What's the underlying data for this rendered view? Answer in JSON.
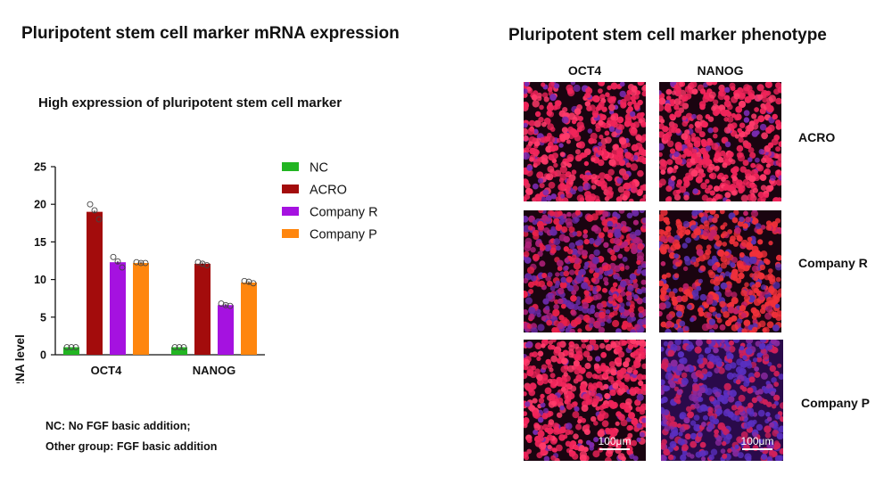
{
  "left_title": "Pluripotent stem cell marker mRNA expression",
  "right_title": "Pluripotent stem cell marker phenotype",
  "footnote_1": "NC: No FGF basic addition;",
  "footnote_2": "Other group: FGF basic addition",
  "chart_data": {
    "type": "bar",
    "title": "High expression of pluripotent stem cell marker",
    "xlabel": "",
    "ylabel": "relative mRNA level",
    "categories": [
      "OCT4",
      "NANOG"
    ],
    "ylim": [
      0,
      25
    ],
    "yticks": [
      0,
      5,
      10,
      15,
      20,
      25
    ],
    "grid": false,
    "legend_position": "right",
    "series": [
      {
        "name": "NC",
        "color": "#22b522",
        "values": [
          1.0,
          1.0
        ],
        "points": [
          [
            1.0,
            1.0,
            1.0
          ],
          [
            1.0,
            1.0,
            1.0
          ]
        ]
      },
      {
        "name": "ACRO",
        "color": "#a30c0c",
        "values": [
          19.0,
          12.1
        ],
        "points": [
          [
            20.0,
            19.2,
            18.0
          ],
          [
            12.3,
            12.1,
            11.9
          ]
        ]
      },
      {
        "name": "Company R",
        "color": "#a512e0",
        "values": [
          12.3,
          6.6
        ],
        "points": [
          [
            13.0,
            12.4,
            11.6
          ],
          [
            6.8,
            6.6,
            6.5
          ]
        ]
      },
      {
        "name": "Company P",
        "color": "#ff860e",
        "values": [
          12.2,
          9.6
        ],
        "points": [
          [
            12.3,
            12.2,
            12.2
          ],
          [
            9.8,
            9.7,
            9.5
          ]
        ]
      }
    ]
  },
  "image_grid": {
    "columns": [
      "OCT4",
      "NANOG"
    ],
    "rows": [
      "ACRO",
      "Company R",
      "Company P"
    ],
    "scale_bar_label": "100μm"
  }
}
